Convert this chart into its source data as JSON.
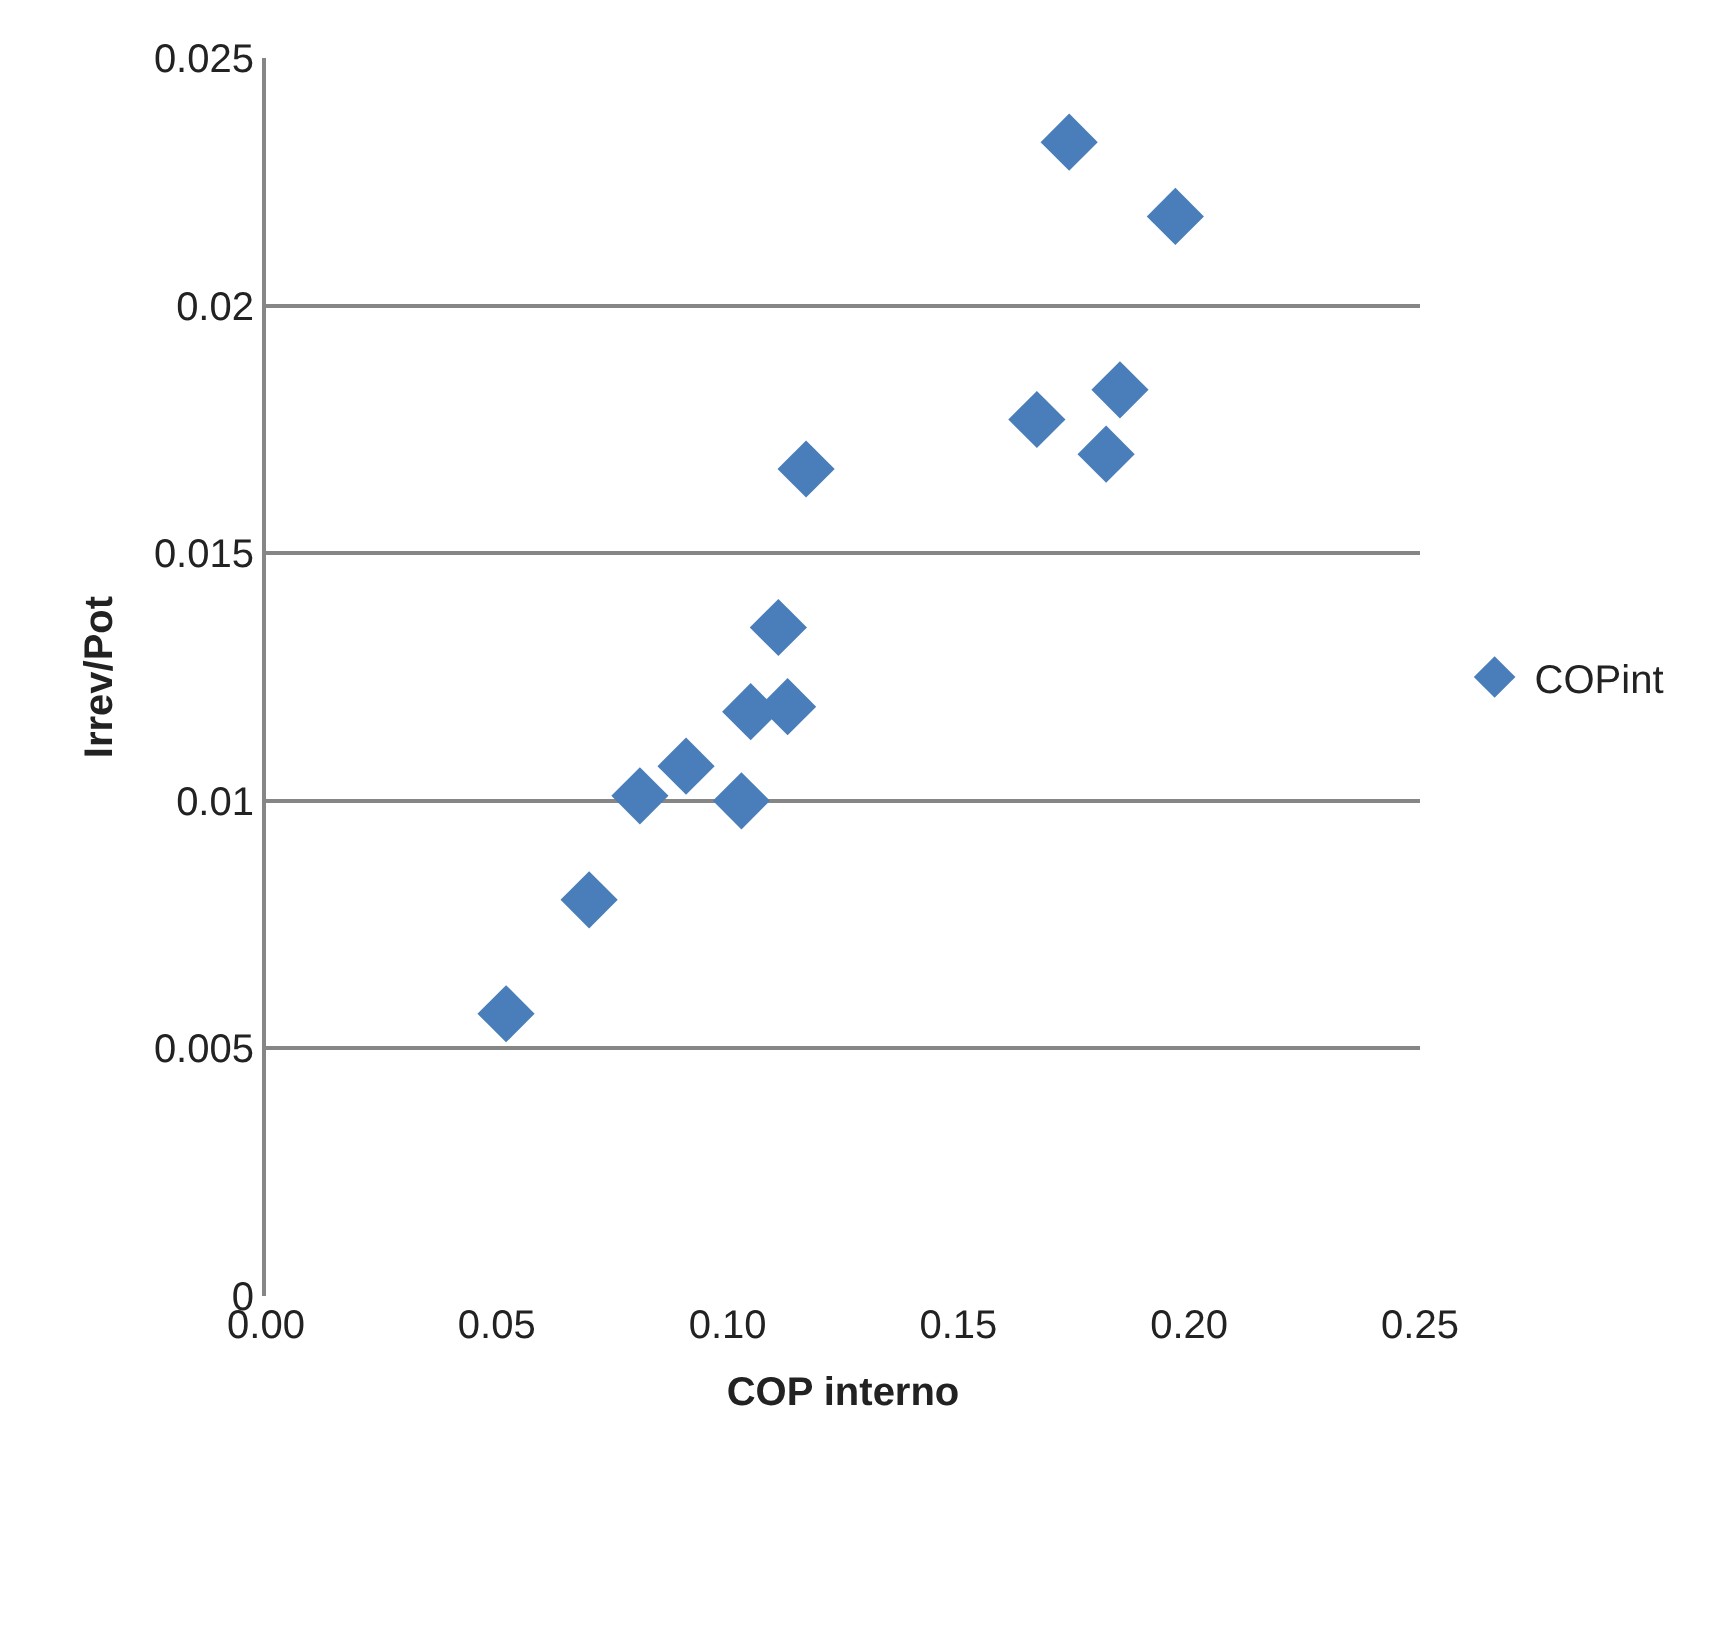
{
  "chart_data": {
    "type": "scatter",
    "xlabel": "COP interno",
    "ylabel": "Irrev/Pot",
    "series": [
      {
        "name": "COPint",
        "color": "#4a7ebb",
        "x": [
          0.052,
          0.07,
          0.081,
          0.091,
          0.103,
          0.105,
          0.111,
          0.113,
          0.117,
          0.167,
          0.174,
          0.182,
          0.185,
          0.197
        ],
        "values": [
          0.0057,
          0.008,
          0.0101,
          0.0107,
          0.01,
          0.0118,
          0.0135,
          0.0119,
          0.0167,
          0.0177,
          0.0233,
          0.017,
          0.0183,
          0.0218
        ]
      }
    ],
    "xlim": [
      0,
      0.25
    ],
    "ylim": [
      0,
      0.025
    ],
    "xticks": [
      {
        "value": 0,
        "label": "0.00"
      },
      {
        "value": 0.05,
        "label": "0.05"
      },
      {
        "value": 0.1,
        "label": "0.10"
      },
      {
        "value": 0.15,
        "label": "0.15"
      },
      {
        "value": 0.2,
        "label": "0.20"
      },
      {
        "value": 0.25,
        "label": "0.25"
      }
    ],
    "yticks": [
      0,
      0.005,
      0.01,
      0.015,
      0.02,
      0.025
    ],
    "grid": "y",
    "legend": "right",
    "marker": "diamond"
  }
}
